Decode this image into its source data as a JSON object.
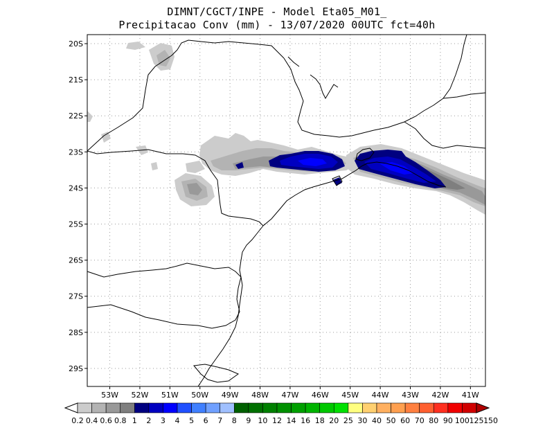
{
  "title": {
    "line1": "DIMNT/CGCT/INPE -  Model Eta05_M01_",
    "line2": "Precipitacao Conv (mm) - 13/07/2020 00UTC fct=40h"
  },
  "map": {
    "lat_labels": [
      "20S",
      "21S",
      "22S",
      "23S",
      "24S",
      "25S",
      "26S",
      "27S",
      "28S",
      "29S"
    ],
    "lat_values": [
      -20,
      -21,
      -22,
      -23,
      -24,
      -25,
      -26,
      -27,
      -28,
      -29
    ],
    "lon_labels": [
      "53W",
      "52W",
      "51W",
      "50W",
      "49W",
      "48W",
      "47W",
      "46W",
      "45W",
      "44W",
      "43W",
      "42W",
      "41W"
    ],
    "lon_values": [
      -53,
      -52,
      -51,
      -50,
      -49,
      -48,
      -47,
      -46,
      -45,
      -44,
      -43,
      -42,
      -41
    ],
    "lon_range": [
      -53.75,
      -40.5
    ],
    "lat_range": [
      -29.5,
      -19.75
    ],
    "grid": "dotted"
  },
  "colorbar": {
    "labels": [
      "0.2",
      "0.4",
      "0.6",
      "0.8",
      "1",
      "2",
      "3",
      "4",
      "5",
      "6",
      "7",
      "8",
      "9",
      "10",
      "12",
      "14",
      "16",
      "18",
      "20",
      "25",
      "30",
      "40",
      "50",
      "60",
      "70",
      "80",
      "90",
      "100",
      "125",
      "150"
    ],
    "colors": [
      "#cccccc",
      "#b3b3b3",
      "#999999",
      "#7f7f7f",
      "#000080",
      "#0000c0",
      "#0000ff",
      "#2050ff",
      "#4080ff",
      "#70a0ff",
      "#a0c0ff",
      "#006000",
      "#007000",
      "#008000",
      "#009000",
      "#00a000",
      "#00b400",
      "#00c800",
      "#00e000",
      "#ffff80",
      "#ffd070",
      "#ffb060",
      "#ffa050",
      "#ff8040",
      "#ff6030",
      "#ff3020",
      "#f00000",
      "#d00000",
      "#b00000",
      "#900000"
    ]
  }
}
